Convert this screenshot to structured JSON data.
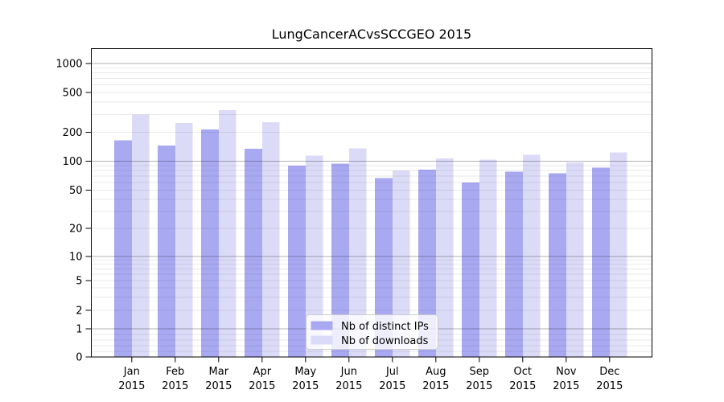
{
  "chart_data": {
    "type": "bar",
    "title": "LungCancerACvsSCCGEO 2015",
    "categories": [
      "Jan",
      "Feb",
      "Mar",
      "Apr",
      "May",
      "Jun",
      "Jul",
      "Aug",
      "Sep",
      "Oct",
      "Nov",
      "Dec"
    ],
    "category_year": "2015",
    "series": [
      {
        "name": "Nb of distinct IPs",
        "color": "#a9a9f2",
        "values": [
          165,
          146,
          213,
          135,
          90,
          94,
          67,
          82,
          60,
          78,
          75,
          86
        ]
      },
      {
        "name": "Nb of downloads",
        "color": "#dbdbf8",
        "values": [
          300,
          248,
          334,
          252,
          114,
          136,
          80,
          107,
          104,
          117,
          97,
          123
        ]
      }
    ],
    "y_ticks": [
      0,
      1,
      2,
      5,
      10,
      20,
      50,
      100,
      200,
      500,
      1000
    ],
    "y_scale": "symlog",
    "ylim": [
      0,
      1400
    ],
    "xlabel": "",
    "ylabel": "",
    "grid": true,
    "legend_position": "lower center",
    "colors": {
      "grid_major": "rgba(0,0,0,0.30)",
      "grid_minor": "rgba(0,0,0,0.085)",
      "spine": "#000000",
      "background": "#ffffff"
    }
  }
}
